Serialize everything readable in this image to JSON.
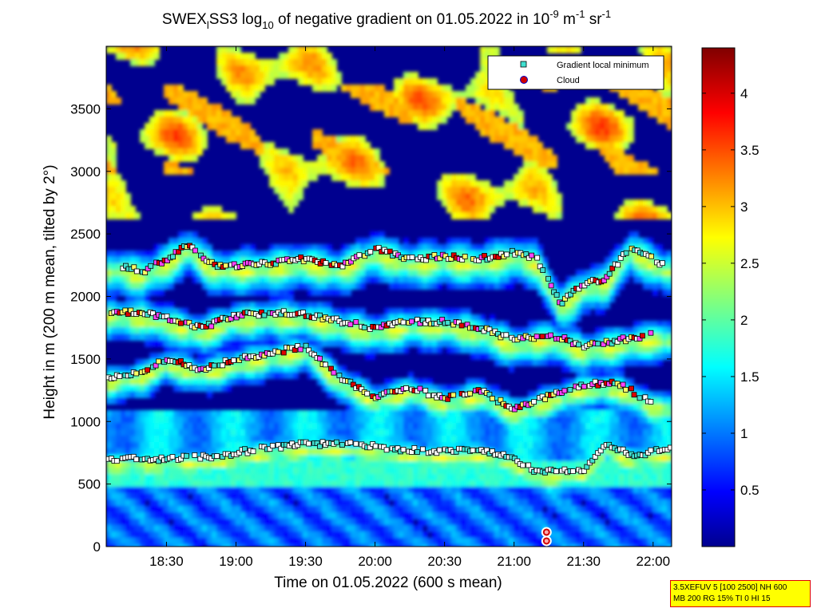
{
  "title": {
    "prefix": "SWEX",
    "prefix_sub": "l",
    "station": "SS3 log",
    "log_base": "10",
    "middle": " of negative gradient on 01.05.2022 in 10",
    "exp1": "-9",
    "unit1": " m",
    "exp2": "-1",
    "unit2": " sr",
    "exp3": "-1"
  },
  "xlabel": "Time on 01.05.2022 (600 s mean)",
  "ylabel": "Height in m (200 m mean, tilted by 2°)",
  "legend": {
    "placement": "top-right",
    "items": [
      {
        "label": "Gradient local minimum",
        "marker": "square",
        "color": "#40e0d0"
      },
      {
        "label": "Cloud",
        "marker": "circle",
        "color": "#d00000"
      }
    ]
  },
  "parameter_box": {
    "line1": "3.5XEFUV 5 [100 2500] NH 600",
    "line2": "MB 200 RG 15% TI 0 HI 15"
  },
  "colormap": "jet",
  "colors": {
    "background_low": "#00008f",
    "param_box_bg": "#ffff00",
    "param_box_border": "#e00000"
  },
  "chart_data": {
    "type": "heatmap",
    "title": "SWEXlSS3 log10 of negative gradient on 01.05.2022 in 10^-9 m^-1 sr^-1",
    "xlabel": "Time on 01.05.2022 (600 s mean)",
    "ylabel": "Height in m (200 m mean, tilted by 2°)",
    "x_range": [
      "18:04",
      "22:08"
    ],
    "x_ticks": [
      "18:30",
      "19:00",
      "19:30",
      "20:00",
      "20:30",
      "21:00",
      "21:30",
      "22:00"
    ],
    "y_range": [
      0,
      4000
    ],
    "y_ticks": [
      "0",
      "500",
      "1000",
      "1500",
      "2000",
      "2500",
      "3000",
      "3500"
    ],
    "colorbar": {
      "range": [
        0,
        4.4
      ],
      "ticks": [
        "0.5",
        "1",
        "1.5",
        "2",
        "2.5",
        "3",
        "3.5",
        "4"
      ]
    },
    "grid": false,
    "gradient_minimum_layers": [
      {
        "name": "layer 1",
        "time": [
          "18:05",
          "18:30",
          "18:50",
          "19:10",
          "19:30",
          "19:50",
          "20:10",
          "20:30",
          "20:45",
          "21:00",
          "21:10",
          "21:20",
          "21:30",
          "21:40",
          "21:50",
          "22:08"
        ],
        "height": [
          700,
          700,
          720,
          780,
          820,
          820,
          780,
          760,
          780,
          700,
          600,
          600,
          620,
          820,
          730,
          780
        ]
      },
      {
        "name": "layer 2",
        "time": [
          "18:05",
          "18:20",
          "18:30",
          "18:45",
          "19:00",
          "19:15",
          "19:30",
          "19:45",
          "20:00",
          "20:15",
          "20:30",
          "20:45",
          "21:00",
          "21:15",
          "21:30",
          "21:45",
          "22:00"
        ],
        "height": [
          1350,
          1400,
          1500,
          1420,
          1500,
          1550,
          1600,
          1350,
          1200,
          1280,
          1180,
          1250,
          1100,
          1200,
          1300,
          1300,
          1150
        ]
      },
      {
        "name": "layer 3",
        "time": [
          "18:05",
          "18:20",
          "18:35",
          "18:45",
          "19:00",
          "19:15",
          "19:30",
          "19:45",
          "20:00",
          "20:15",
          "20:30",
          "20:45",
          "21:00",
          "21:15",
          "21:30",
          "21:45",
          "22:00"
        ],
        "height": [
          1880,
          1870,
          1800,
          1750,
          1850,
          1870,
          1860,
          1800,
          1750,
          1800,
          1800,
          1750,
          1650,
          1700,
          1600,
          1650,
          1700
        ]
      },
      {
        "name": "layer 4",
        "time": [
          "18:10",
          "18:20",
          "18:30",
          "18:40",
          "18:50",
          "19:00",
          "19:15",
          "19:30",
          "19:45",
          "20:00",
          "20:15",
          "20:30",
          "20:45",
          "21:00",
          "21:10",
          "21:20",
          "21:30",
          "21:40",
          "21:50",
          "22:05"
        ],
        "height": [
          2250,
          2200,
          2300,
          2420,
          2250,
          2250,
          2270,
          2300,
          2250,
          2380,
          2300,
          2320,
          2300,
          2350,
          2300,
          1950,
          2100,
          2150,
          2400,
          2250
        ]
      }
    ],
    "cloud_points": [
      {
        "time": "21:14",
        "height": 115
      },
      {
        "time": "21:14",
        "height": 45
      }
    ]
  }
}
